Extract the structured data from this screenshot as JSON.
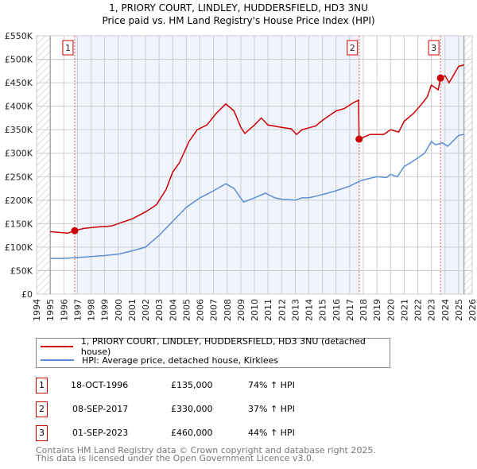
{
  "chart_data": {
    "type": "line",
    "title": "1, PRIORY COURT, LINDLEY, HUDDERSFIELD, HD3 3NU",
    "subtitle": "Price paid vs. HM Land Registry's House Price Index (HPI)",
    "xlim": [
      1994,
      2026
    ],
    "ylim": [
      0,
      550000
    ],
    "x_ticks": [
      "1994",
      "1995",
      "1996",
      "1997",
      "1998",
      "1999",
      "2000",
      "2001",
      "2002",
      "2003",
      "2004",
      "2005",
      "2006",
      "2007",
      "2008",
      "2009",
      "2010",
      "2011",
      "2012",
      "2013",
      "2014",
      "2015",
      "2016",
      "2017",
      "2018",
      "2019",
      "2020",
      "2021",
      "2022",
      "2023",
      "2024",
      "2025",
      "2026"
    ],
    "y_ticks": [
      {
        "v": 0,
        "label": "£0"
      },
      {
        "v": 50000,
        "label": "£50K"
      },
      {
        "v": 100000,
        "label": "£100K"
      },
      {
        "v": 150000,
        "label": "£150K"
      },
      {
        "v": 200000,
        "label": "£200K"
      },
      {
        "v": 250000,
        "label": "£250K"
      },
      {
        "v": 300000,
        "label": "£300K"
      },
      {
        "v": 350000,
        "label": "£350K"
      },
      {
        "v": 400000,
        "label": "£400K"
      },
      {
        "v": 450000,
        "label": "£450K"
      },
      {
        "v": 500000,
        "label": "£500K"
      },
      {
        "v": 550000,
        "label": "£550K"
      }
    ],
    "grid": true,
    "data_range": [
      1995,
      2025.4
    ],
    "series": [
      {
        "name": "1, PRIORY COURT, LINDLEY, HUDDERSFIELD, HD3 3NU (detached house)",
        "color": "#cc0000",
        "x": [
          1995,
          1996.3,
          1996.8,
          1997.5,
          1998.5,
          1999.5,
          2000.3,
          2001,
          2002,
          2002.8,
          2003.5,
          2004,
          2004.5,
          2005.2,
          2005.8,
          2006.5,
          2007.2,
          2007.9,
          2008.5,
          2009,
          2009.3,
          2010,
          2010.5,
          2011,
          2012,
          2012.7,
          2013.1,
          2013.5,
          2014.5,
          2015,
          2016,
          2016.6,
          2017.3,
          2017.65,
          2017.69,
          2018.5,
          2019.5,
          2020,
          2020.6,
          2021,
          2021.7,
          2022.3,
          2022.7,
          2023,
          2023.5,
          2023.67,
          2024,
          2024.3,
          2025,
          2025.4
        ],
        "y": [
          133000,
          130000,
          135000,
          140000,
          143000,
          145000,
          153000,
          160000,
          175000,
          190000,
          222000,
          260000,
          280000,
          325000,
          350000,
          360000,
          385000,
          405000,
          390000,
          355000,
          342000,
          360000,
          375000,
          360000,
          355000,
          352000,
          340000,
          350000,
          358000,
          370000,
          390000,
          395000,
          408000,
          413000,
          330000,
          340000,
          340000,
          350000,
          345000,
          368000,
          385000,
          405000,
          420000,
          445000,
          435000,
          460000,
          465000,
          450000,
          485000,
          488000
        ]
      },
      {
        "name": "HPI: Average price, detached house, Kirklees",
        "color": "#5b8fd4",
        "x": [
          1995,
          1996,
          1997,
          1998,
          1999,
          2000,
          2001,
          2002,
          2003,
          2004,
          2005,
          2006,
          2007,
          2007.9,
          2008.5,
          2009.2,
          2010,
          2010.8,
          2011.5,
          2012,
          2013,
          2013.5,
          2014,
          2015,
          2016,
          2017,
          2017.7,
          2018,
          2019,
          2019.7,
          2020,
          2020.5,
          2021,
          2021.5,
          2022,
          2022.5,
          2023,
          2023.3,
          2023.8,
          2024.2,
          2025,
          2025.4
        ],
        "y": [
          76000,
          76000,
          78000,
          80000,
          82000,
          85000,
          92000,
          100000,
          125000,
          155000,
          185000,
          205000,
          220000,
          235000,
          225000,
          196000,
          205000,
          215000,
          205000,
          202000,
          200000,
          205000,
          205000,
          212000,
          220000,
          230000,
          240000,
          243000,
          250000,
          248000,
          255000,
          250000,
          272000,
          280000,
          290000,
          300000,
          325000,
          318000,
          322000,
          315000,
          338000,
          340000
        ]
      }
    ],
    "sales": [
      {
        "n": "1",
        "x": 1996.8,
        "y": 135000,
        "date": "18-OCT-1996",
        "price": "£135,000",
        "hpi": "74% ↑ HPI"
      },
      {
        "n": "2",
        "x": 2017.69,
        "y": 330000,
        "date": "08-SEP-2017",
        "price": "£330,000",
        "hpi": "37% ↑ HPI"
      },
      {
        "n": "3",
        "x": 2023.67,
        "y": 460000,
        "date": "01-SEP-2023",
        "price": "£460,000",
        "hpi": "44% ↑ HPI"
      }
    ],
    "legend_placement": "below"
  },
  "footer": {
    "line1": "Contains HM Land Registry data © Crown copyright and database right 2025.",
    "line2": "This data is licensed under the Open Government Licence v3.0."
  }
}
